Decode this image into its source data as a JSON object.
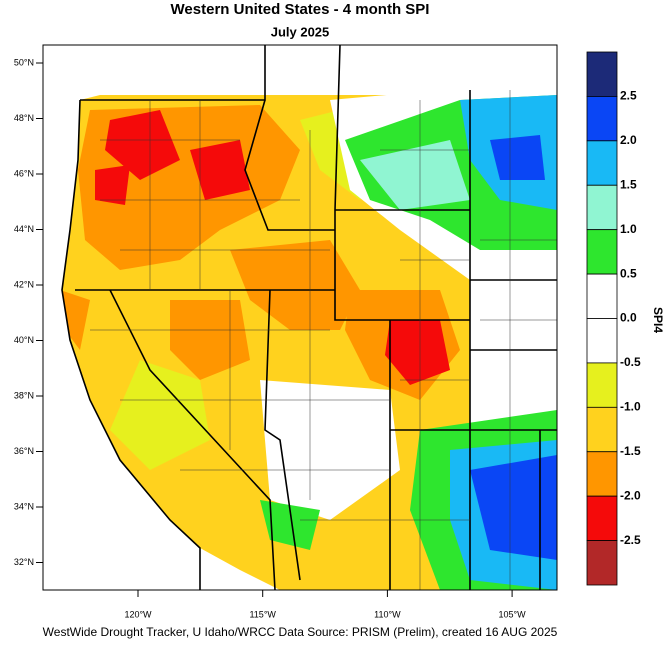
{
  "title": "Western United States - 4 month SPI",
  "subtitle": "July 2025",
  "lat_labels": [
    "50°N",
    "48°N",
    "46°N",
    "44°N",
    "42°N",
    "40°N",
    "38°N",
    "36°N",
    "34°N",
    "32°N"
  ],
  "lon_labels": [
    "120°W",
    "115°W",
    "110°W",
    "105°W"
  ],
  "colorbar": {
    "title": "SPI4",
    "labels": [
      "2.5",
      "2.0",
      "1.5",
      "1.0",
      "0.5",
      "0.0",
      "-0.5",
      "-1.0",
      "-1.5",
      "-2.0",
      "-2.5"
    ],
    "colors": [
      "#1c2a78",
      "#0a46f5",
      "#19b9f5",
      "#90f5d2",
      "#2ee62e",
      "#ffffff",
      "#ffffff",
      "#e6f01e",
      "#ffd21e",
      "#ff9600",
      "#f50a0a",
      "#b22828"
    ]
  },
  "footer": "WestWide Drought Tracker, U Idaho/WRCC Data Source: PRISM (Prelim), created 16 AUG 2025"
}
